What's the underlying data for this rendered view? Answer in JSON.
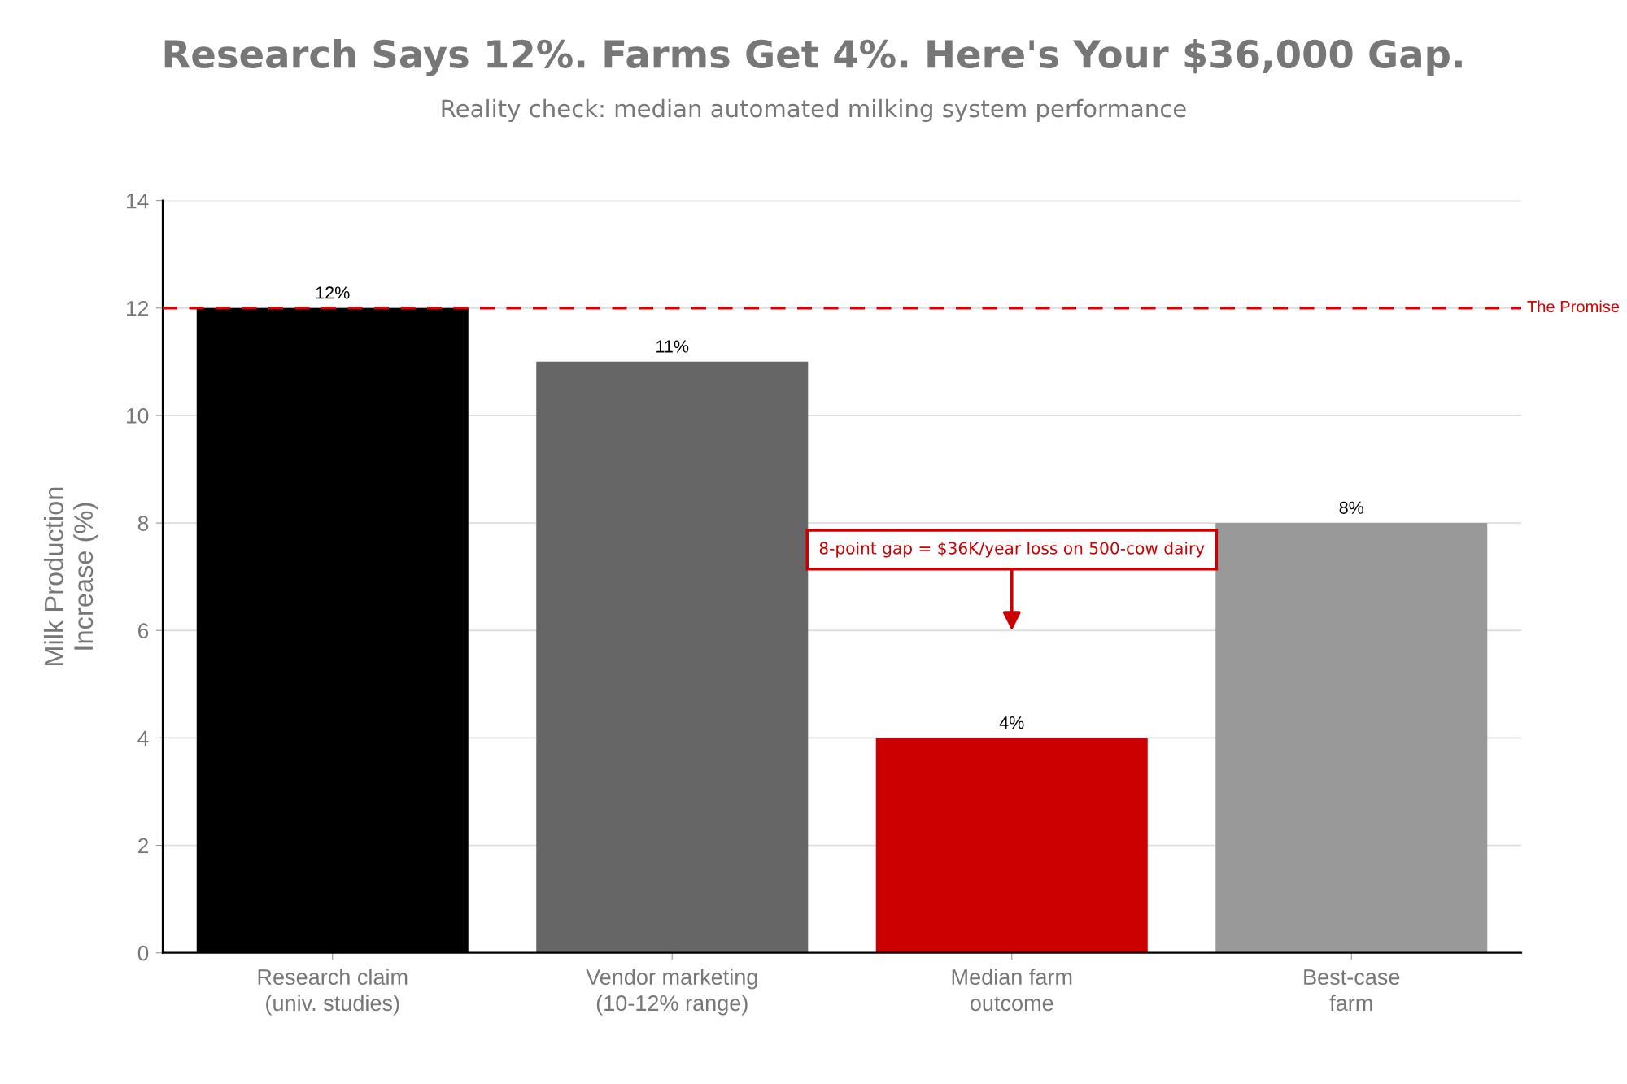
{
  "chart_data": {
    "type": "bar",
    "title": "Research Says 12%. Farms Get 4%. Here's Your $36,000 Gap.",
    "subtitle": "Reality check: median automated milking system performance",
    "ylabel": "Milk Production\nIncrease (%)",
    "categories": [
      "Research claim\n(univ. studies)",
      "Vendor marketing\n(10-12% range)",
      "Median farm\noutcome",
      "Best-case\nfarm"
    ],
    "values": [
      12,
      11,
      4,
      8
    ],
    "colors": [
      "#000000",
      "#666666",
      "#cc0000",
      "#999999"
    ],
    "value_labels": [
      "12%",
      "11%",
      "4%",
      "8%"
    ],
    "ylim": [
      0,
      14
    ],
    "yticks": [
      0,
      2,
      4,
      6,
      8,
      10,
      12,
      14
    ],
    "grid": "y",
    "ref_lines": [
      {
        "axis": "y",
        "value": 12,
        "label": "The Promise",
        "color": "#dd0000",
        "line_style": "dashed"
      }
    ],
    "annotations": [
      "8-point gap = $36K/year loss on 500-cow dairy"
    ]
  }
}
